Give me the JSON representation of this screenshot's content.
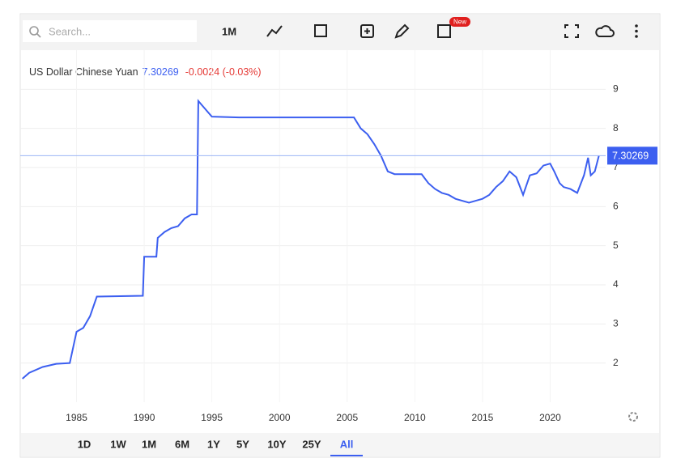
{
  "toolbar": {
    "search": "Search...",
    "interval": "1M",
    "badge": "New"
  },
  "chart_data": {
    "type": "line",
    "title": "US Dollar Chinese Yuan",
    "last": 7.30269,
    "change": "-0.0024 (-0.03%)",
    "x": [
      1981.0,
      1981.5,
      1982.5,
      1983.5,
      1984.5,
      1985.0,
      1985.5,
      1986.0,
      1986.5,
      1989.9,
      1990.0,
      1990.9,
      1991.0,
      1991.5,
      1992.0,
      1992.5,
      1993.0,
      1993.5,
      1993.9,
      1994.0,
      1994.5,
      1995.0,
      1997.0,
      2005.5,
      2006.0,
      2006.5,
      2007.0,
      2007.5,
      2008.0,
      2008.5,
      2010.5,
      2011.0,
      2011.5,
      2012.0,
      2012.5,
      2013.0,
      2014.0,
      2014.5,
      2015.0,
      2015.5,
      2016.0,
      2016.5,
      2017.0,
      2017.5,
      2018.0,
      2018.5,
      2019.0,
      2019.5,
      2020.0,
      2020.3,
      2020.7,
      2021.0,
      2021.5,
      2022.0,
      2022.5,
      2022.8,
      2023.0,
      2023.3,
      2023.6
    ],
    "values": [
      1.6,
      1.75,
      1.9,
      1.98,
      2.0,
      2.8,
      2.9,
      3.2,
      3.7,
      3.72,
      4.72,
      4.72,
      5.2,
      5.35,
      5.45,
      5.5,
      5.7,
      5.8,
      5.8,
      8.7,
      8.5,
      8.3,
      8.28,
      8.28,
      8.0,
      7.85,
      7.6,
      7.3,
      6.9,
      6.83,
      6.83,
      6.6,
      6.45,
      6.35,
      6.3,
      6.2,
      6.1,
      6.15,
      6.2,
      6.3,
      6.5,
      6.65,
      6.9,
      6.75,
      6.3,
      6.8,
      6.85,
      7.05,
      7.1,
      6.9,
      6.6,
      6.5,
      6.45,
      6.35,
      6.8,
      7.25,
      6.8,
      6.9,
      7.3
    ],
    "color": "#3c5ff0",
    "xlim": [
      1980.84,
      2024.1
    ],
    "xticks": [
      1985,
      1990,
      1995,
      2000,
      2005,
      2010,
      2015,
      2020
    ],
    "ylim": [
      1,
      10
    ],
    "yticks": [
      2,
      3,
      4,
      5,
      6,
      7,
      8,
      9
    ],
    "grid": true
  },
  "ranges": [
    "1D",
    "1W",
    "1M",
    "6M",
    "1Y",
    "5Y",
    "10Y",
    "25Y",
    "All"
  ],
  "active_range": 8
}
